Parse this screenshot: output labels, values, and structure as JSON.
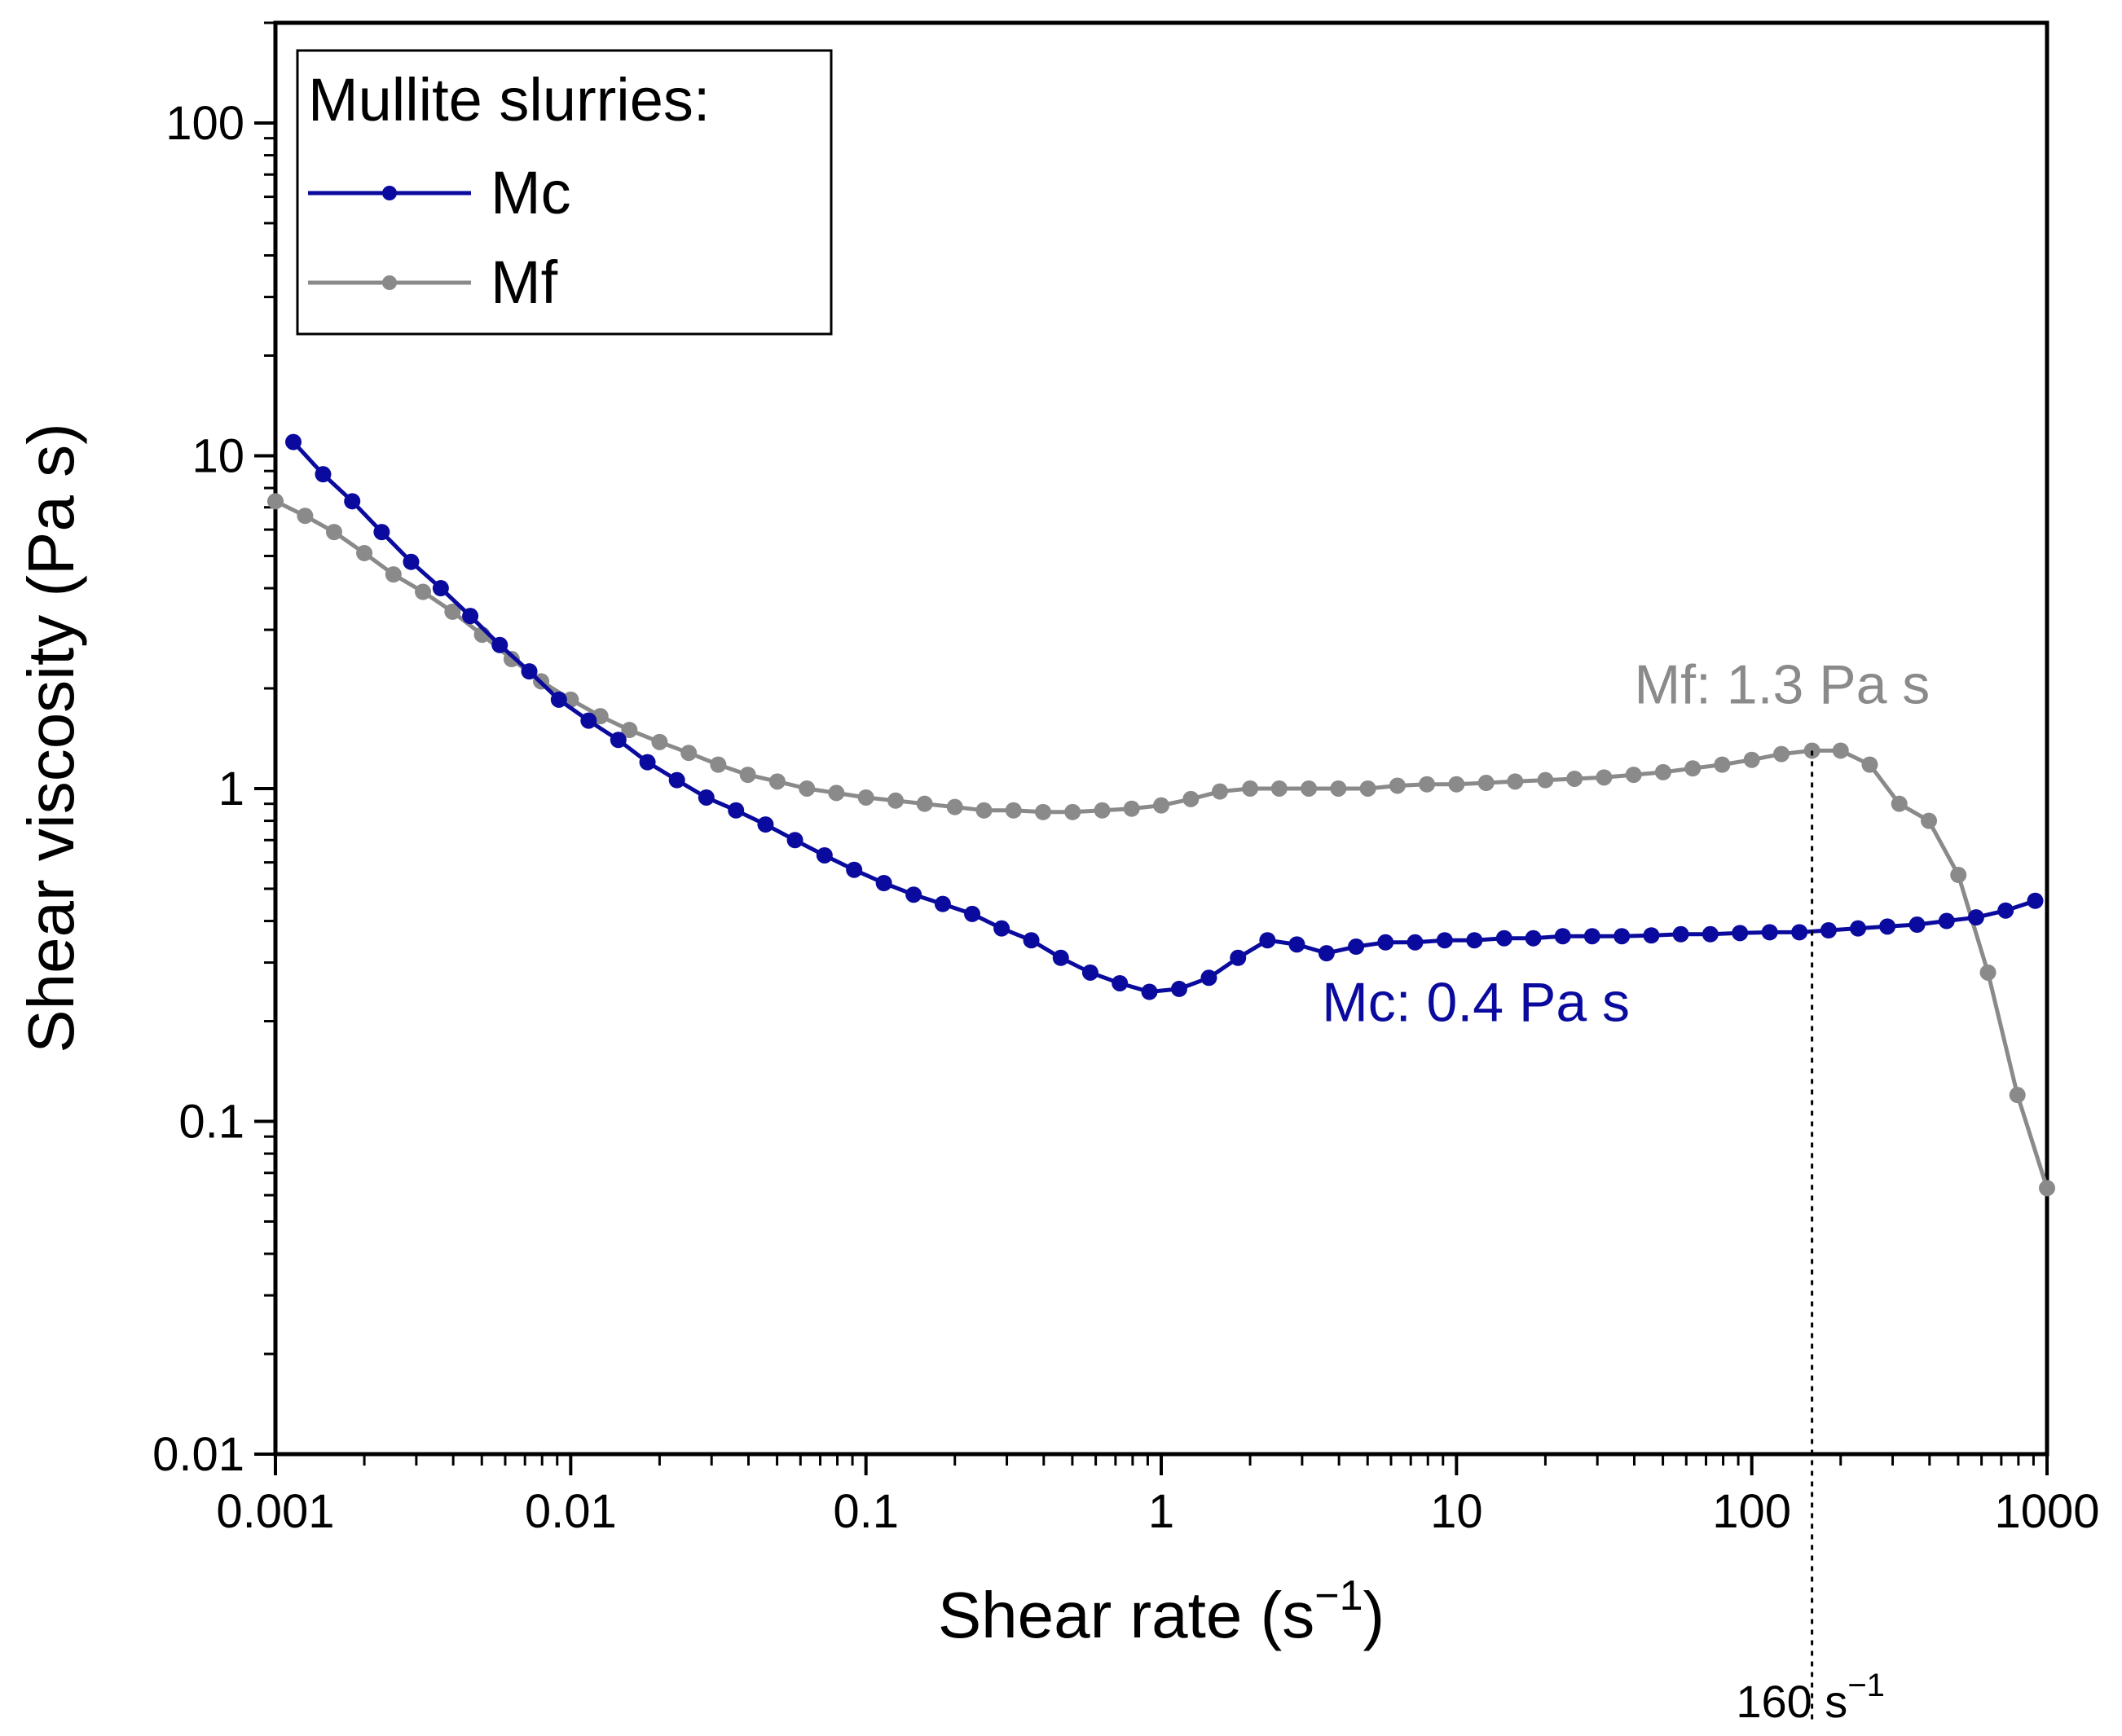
{
  "chart_data": {
    "type": "line",
    "xscale": "log",
    "yscale": "log",
    "xlim": [
      0.001,
      1000
    ],
    "ylim": [
      0.01,
      200
    ],
    "xlabel": "Shear rate (s",
    "xlabel_sup": "−1",
    "xlabel_end": ")",
    "ylabel": "Shear viscosity (Pa s)",
    "xticks": [
      {
        "value": 0.001,
        "label": "0.001"
      },
      {
        "value": 0.01,
        "label": "0.01"
      },
      {
        "value": 0.1,
        "label": "0.1"
      },
      {
        "value": 1,
        "label": "1"
      },
      {
        "value": 10,
        "label": "10"
      },
      {
        "value": 100,
        "label": "100"
      },
      {
        "value": 1000,
        "label": "1000"
      }
    ],
    "yticks": [
      {
        "value": 0.01,
        "label": "0.01"
      },
      {
        "value": 0.1,
        "label": "0.1"
      },
      {
        "value": 1,
        "label": "1"
      },
      {
        "value": 10,
        "label": "10"
      },
      {
        "value": 100,
        "label": "100"
      }
    ],
    "legend": {
      "title": "Mullite slurries:",
      "position": "top-left"
    },
    "series": [
      {
        "name": "Mc",
        "color": "#0a0a9e",
        "x": [
          0.00115,
          0.00145,
          0.00182,
          0.00229,
          0.00288,
          0.00363,
          0.00457,
          0.00575,
          0.00724,
          0.00912,
          0.0115,
          0.0145,
          0.0182,
          0.0229,
          0.0288,
          0.0363,
          0.0457,
          0.0575,
          0.0724,
          0.0912,
          0.115,
          0.145,
          0.182,
          0.229,
          0.288,
          0.363,
          0.457,
          0.575,
          0.724,
          0.912,
          1.15,
          1.45,
          1.82,
          2.29,
          2.88,
          3.63,
          4.57,
          5.75,
          7.24,
          9.12,
          11.5,
          14.5,
          18.2,
          22.9,
          28.8,
          36.3,
          45.7,
          57.5,
          72.4,
          91.2,
          115,
          145,
          182,
          229,
          288,
          363,
          457,
          575,
          724,
          912
        ],
        "y": [
          11.0,
          8.8,
          7.3,
          5.9,
          4.8,
          4.0,
          3.3,
          2.7,
          2.25,
          1.85,
          1.6,
          1.4,
          1.2,
          1.06,
          0.94,
          0.86,
          0.78,
          0.7,
          0.63,
          0.57,
          0.52,
          0.48,
          0.45,
          0.42,
          0.38,
          0.35,
          0.31,
          0.28,
          0.26,
          0.245,
          0.25,
          0.27,
          0.31,
          0.35,
          0.34,
          0.32,
          0.335,
          0.345,
          0.345,
          0.35,
          0.35,
          0.355,
          0.355,
          0.36,
          0.36,
          0.36,
          0.362,
          0.365,
          0.365,
          0.368,
          0.37,
          0.37,
          0.375,
          0.38,
          0.385,
          0.39,
          0.4,
          0.41,
          0.43,
          0.46
        ]
      },
      {
        "name": "Mf",
        "color": "#8a8a8a",
        "x": [
          0.001,
          0.00126,
          0.00158,
          0.002,
          0.00251,
          0.00316,
          0.00398,
          0.00501,
          0.00631,
          0.00794,
          0.01,
          0.0126,
          0.0158,
          0.02,
          0.0251,
          0.0316,
          0.0398,
          0.0501,
          0.0631,
          0.0794,
          0.1,
          0.126,
          0.158,
          0.2,
          0.251,
          0.316,
          0.398,
          0.501,
          0.631,
          0.794,
          1.0,
          1.26,
          1.58,
          2.0,
          2.51,
          3.16,
          3.98,
          5.01,
          6.31,
          7.94,
          10,
          12.6,
          15.8,
          20,
          25.1,
          31.6,
          39.8,
          50.1,
          63.1,
          79.4,
          100,
          126,
          160,
          200,
          251,
          316,
          398,
          501,
          631,
          794,
          1000
        ],
        "y": [
          7.3,
          6.6,
          5.9,
          5.1,
          4.4,
          3.9,
          3.4,
          2.9,
          2.45,
          2.1,
          1.85,
          1.65,
          1.5,
          1.38,
          1.28,
          1.18,
          1.1,
          1.05,
          1.0,
          0.97,
          0.94,
          0.92,
          0.9,
          0.88,
          0.86,
          0.86,
          0.85,
          0.85,
          0.86,
          0.87,
          0.89,
          0.93,
          0.98,
          1.0,
          1.0,
          1.0,
          1.0,
          1.0,
          1.02,
          1.03,
          1.03,
          1.04,
          1.05,
          1.06,
          1.07,
          1.08,
          1.1,
          1.12,
          1.15,
          1.18,
          1.22,
          1.27,
          1.3,
          1.3,
          1.18,
          0.9,
          0.8,
          0.55,
          0.28,
          0.12,
          0.063
        ]
      }
    ],
    "annotations": [
      {
        "text": "Mf: 1.3 Pa s",
        "color": "#8a8a8a",
        "x": 40,
        "y": 1.8
      },
      {
        "text": "Mc: 0.4 Pa s",
        "color": "#0a0a9e",
        "x": 3.5,
        "y": 0.2
      }
    ],
    "reference_line": {
      "x": 160,
      "label": "160 s",
      "label_sup": "−1",
      "style": "dotted"
    }
  }
}
